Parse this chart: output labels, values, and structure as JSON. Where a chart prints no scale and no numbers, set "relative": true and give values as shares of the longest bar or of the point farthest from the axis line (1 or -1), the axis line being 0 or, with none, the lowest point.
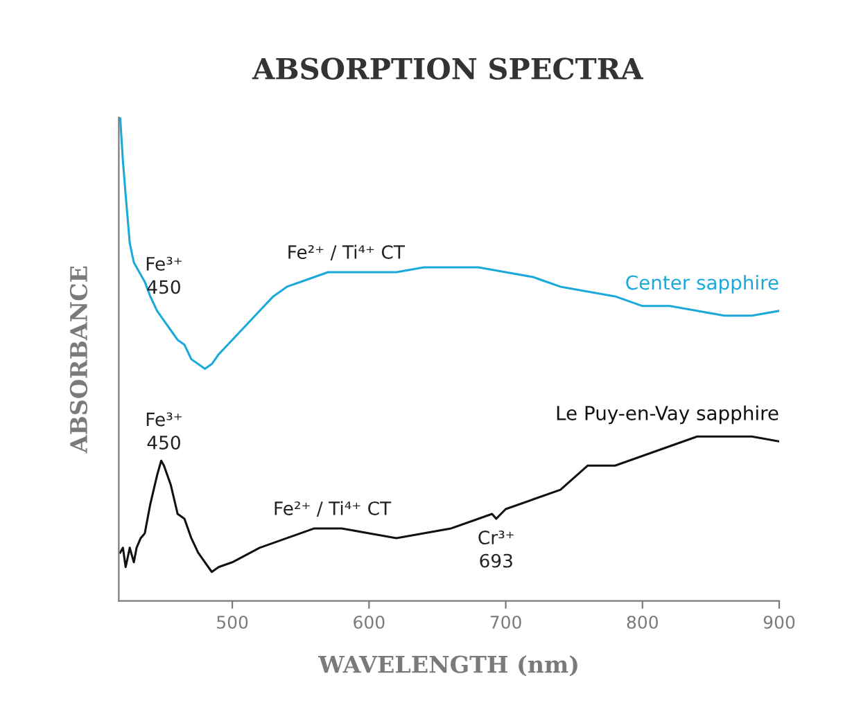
{
  "chart_data": {
    "type": "line",
    "title": "ABSORPTION SPECTRA",
    "xlabel": "WAVELENGTH (nm)",
    "ylabel": "ABSORBANCE",
    "relative": true,
    "xlim": [
      417,
      900
    ],
    "xticks": [
      500,
      600,
      700,
      800,
      900
    ],
    "grid": false,
    "legend": false,
    "tick_labels": "x",
    "series": [
      {
        "name": "Center sapphire",
        "color": "#1ba9d9",
        "x": [
          418,
          420,
          422,
          425,
          428,
          432,
          436,
          440,
          445,
          450,
          455,
          460,
          465,
          470,
          475,
          480,
          485,
          490,
          500,
          510,
          520,
          530,
          540,
          550,
          560,
          570,
          580,
          600,
          620,
          640,
          660,
          680,
          700,
          720,
          730,
          740,
          760,
          780,
          800,
          820,
          840,
          860,
          880,
          900
        ],
        "values": [
          1.0,
          0.91,
          0.84,
          0.74,
          0.7,
          0.68,
          0.66,
          0.63,
          0.6,
          0.58,
          0.56,
          0.54,
          0.53,
          0.5,
          0.49,
          0.48,
          0.49,
          0.51,
          0.54,
          0.57,
          0.6,
          0.63,
          0.65,
          0.66,
          0.67,
          0.68,
          0.68,
          0.68,
          0.68,
          0.69,
          0.69,
          0.69,
          0.68,
          0.67,
          0.66,
          0.65,
          0.64,
          0.63,
          0.61,
          0.61,
          0.6,
          0.59,
          0.59,
          0.6
        ]
      },
      {
        "name": "Le Puy-en-Vay sapphire",
        "color": "#111111",
        "x": [
          418,
          420,
          422,
          425,
          428,
          430,
          433,
          436,
          440,
          445,
          448,
          450,
          455,
          460,
          465,
          470,
          475,
          480,
          485,
          490,
          500,
          520,
          540,
          560,
          570,
          580,
          600,
          620,
          640,
          660,
          680,
          690,
          693,
          700,
          720,
          740,
          760,
          780,
          800,
          820,
          840,
          860,
          880,
          900
        ],
        "values": [
          0.1,
          0.11,
          0.07,
          0.11,
          0.08,
          0.11,
          0.13,
          0.14,
          0.2,
          0.26,
          0.29,
          0.28,
          0.24,
          0.18,
          0.17,
          0.13,
          0.1,
          0.08,
          0.06,
          0.07,
          0.08,
          0.11,
          0.13,
          0.15,
          0.15,
          0.15,
          0.14,
          0.13,
          0.14,
          0.15,
          0.17,
          0.18,
          0.17,
          0.19,
          0.21,
          0.23,
          0.28,
          0.28,
          0.3,
          0.32,
          0.34,
          0.34,
          0.34,
          0.33
        ]
      }
    ],
    "annotations": [
      {
        "text": "Fe³⁺\n450",
        "x": 450,
        "y": 0.58
      },
      {
        "text": "Fe²⁺ / Ti⁴⁺ CT",
        "x": 583,
        "y": 0.68
      },
      {
        "text": "Fe³⁺\n450",
        "x": 450,
        "y": 0.29
      },
      {
        "text": "Fe²⁺ / Ti⁴⁺ CT",
        "x": 573,
        "y": 0.15
      },
      {
        "text": "Cr³⁺\n693",
        "x": 693,
        "y": 0.17
      }
    ]
  }
}
